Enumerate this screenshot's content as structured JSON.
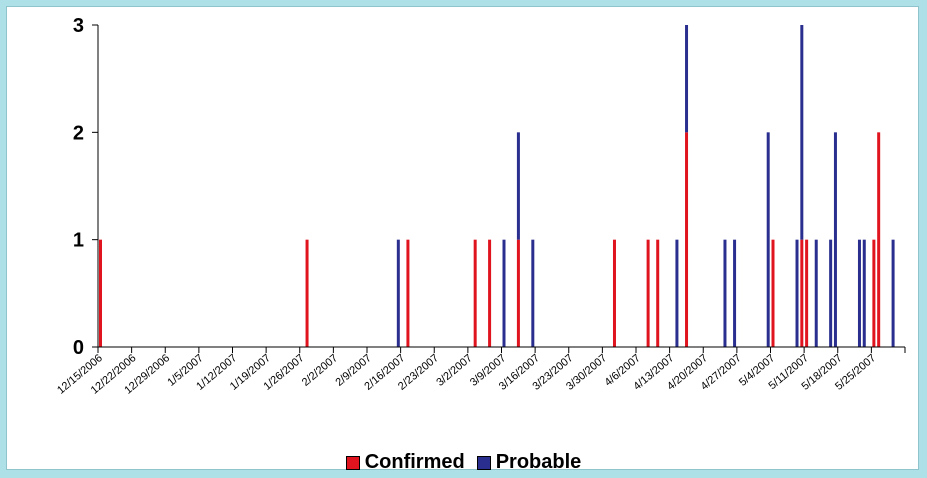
{
  "chart_data": {
    "type": "bar",
    "stacked": true,
    "x_tick_labels": [
      "12/15/2006",
      "12/22/2006",
      "12/29/2006",
      "1/5/2007",
      "1/12/2007",
      "1/19/2007",
      "1/26/2007",
      "2/2/2007",
      "2/9/2007",
      "2/16/2007",
      "2/23/2007",
      "3/2/2007",
      "3/9/2007",
      "3/16/2007",
      "3/23/2007",
      "3/30/2007",
      "4/6/2007",
      "4/13/2007",
      "4/20/2007",
      "4/27/2007",
      "5/4/2007",
      "5/11/2007",
      "5/18/2007",
      "5/25/2007"
    ],
    "y_ticks": [
      "0",
      "1",
      "2",
      "3"
    ],
    "ylim": [
      0,
      3
    ],
    "xlim": [
      "12/15/2006",
      "6/1/2007"
    ],
    "series": [
      {
        "name": "Confirmed",
        "color": "#e0141e"
      },
      {
        "name": "Probable",
        "color": "#2a2f8f"
      }
    ],
    "data": [
      {
        "date": "12/15/2006",
        "confirmed": 1,
        "probable": 0
      },
      {
        "date": "1/27/2007",
        "confirmed": 1,
        "probable": 0
      },
      {
        "date": "2/15/2007",
        "confirmed": 0,
        "probable": 1
      },
      {
        "date": "2/17/2007",
        "confirmed": 1,
        "probable": 0
      },
      {
        "date": "3/3/2007",
        "confirmed": 1,
        "probable": 0
      },
      {
        "date": "3/6/2007",
        "confirmed": 1,
        "probable": 0
      },
      {
        "date": "3/9/2007",
        "confirmed": 0,
        "probable": 1
      },
      {
        "date": "3/12/2007",
        "confirmed": 1,
        "probable": 1
      },
      {
        "date": "3/15/2007",
        "confirmed": 0,
        "probable": 1
      },
      {
        "date": "4/1/2007",
        "confirmed": 1,
        "probable": 0
      },
      {
        "date": "4/8/2007",
        "confirmed": 1,
        "probable": 0
      },
      {
        "date": "4/10/2007",
        "confirmed": 1,
        "probable": 0
      },
      {
        "date": "4/14/2007",
        "confirmed": 0,
        "probable": 1
      },
      {
        "date": "4/16/2007",
        "confirmed": 2,
        "probable": 1
      },
      {
        "date": "4/24/2007",
        "confirmed": 0,
        "probable": 1
      },
      {
        "date": "4/26/2007",
        "confirmed": 0,
        "probable": 1
      },
      {
        "date": "5/3/2007",
        "confirmed": 0,
        "probable": 2
      },
      {
        "date": "5/4/2007",
        "confirmed": 1,
        "probable": 0
      },
      {
        "date": "5/9/2007",
        "confirmed": 0,
        "probable": 1
      },
      {
        "date": "5/10/2007",
        "confirmed": 1,
        "probable": 2
      },
      {
        "date": "5/11/2007",
        "confirmed": 1,
        "probable": 0
      },
      {
        "date": "5/13/2007",
        "confirmed": 0,
        "probable": 1
      },
      {
        "date": "5/16/2007",
        "confirmed": 0,
        "probable": 1
      },
      {
        "date": "5/17/2007",
        "confirmed": 0,
        "probable": 2
      },
      {
        "date": "5/22/2007",
        "confirmed": 0,
        "probable": 1
      },
      {
        "date": "5/23/2007",
        "confirmed": 0,
        "probable": 1
      },
      {
        "date": "5/25/2007",
        "confirmed": 1,
        "probable": 0
      },
      {
        "date": "5/26/2007",
        "confirmed": 2,
        "probable": 0
      },
      {
        "date": "5/29/2007",
        "confirmed": 0,
        "probable": 1
      }
    ],
    "grid": false,
    "legend_position": "bottom-center"
  }
}
